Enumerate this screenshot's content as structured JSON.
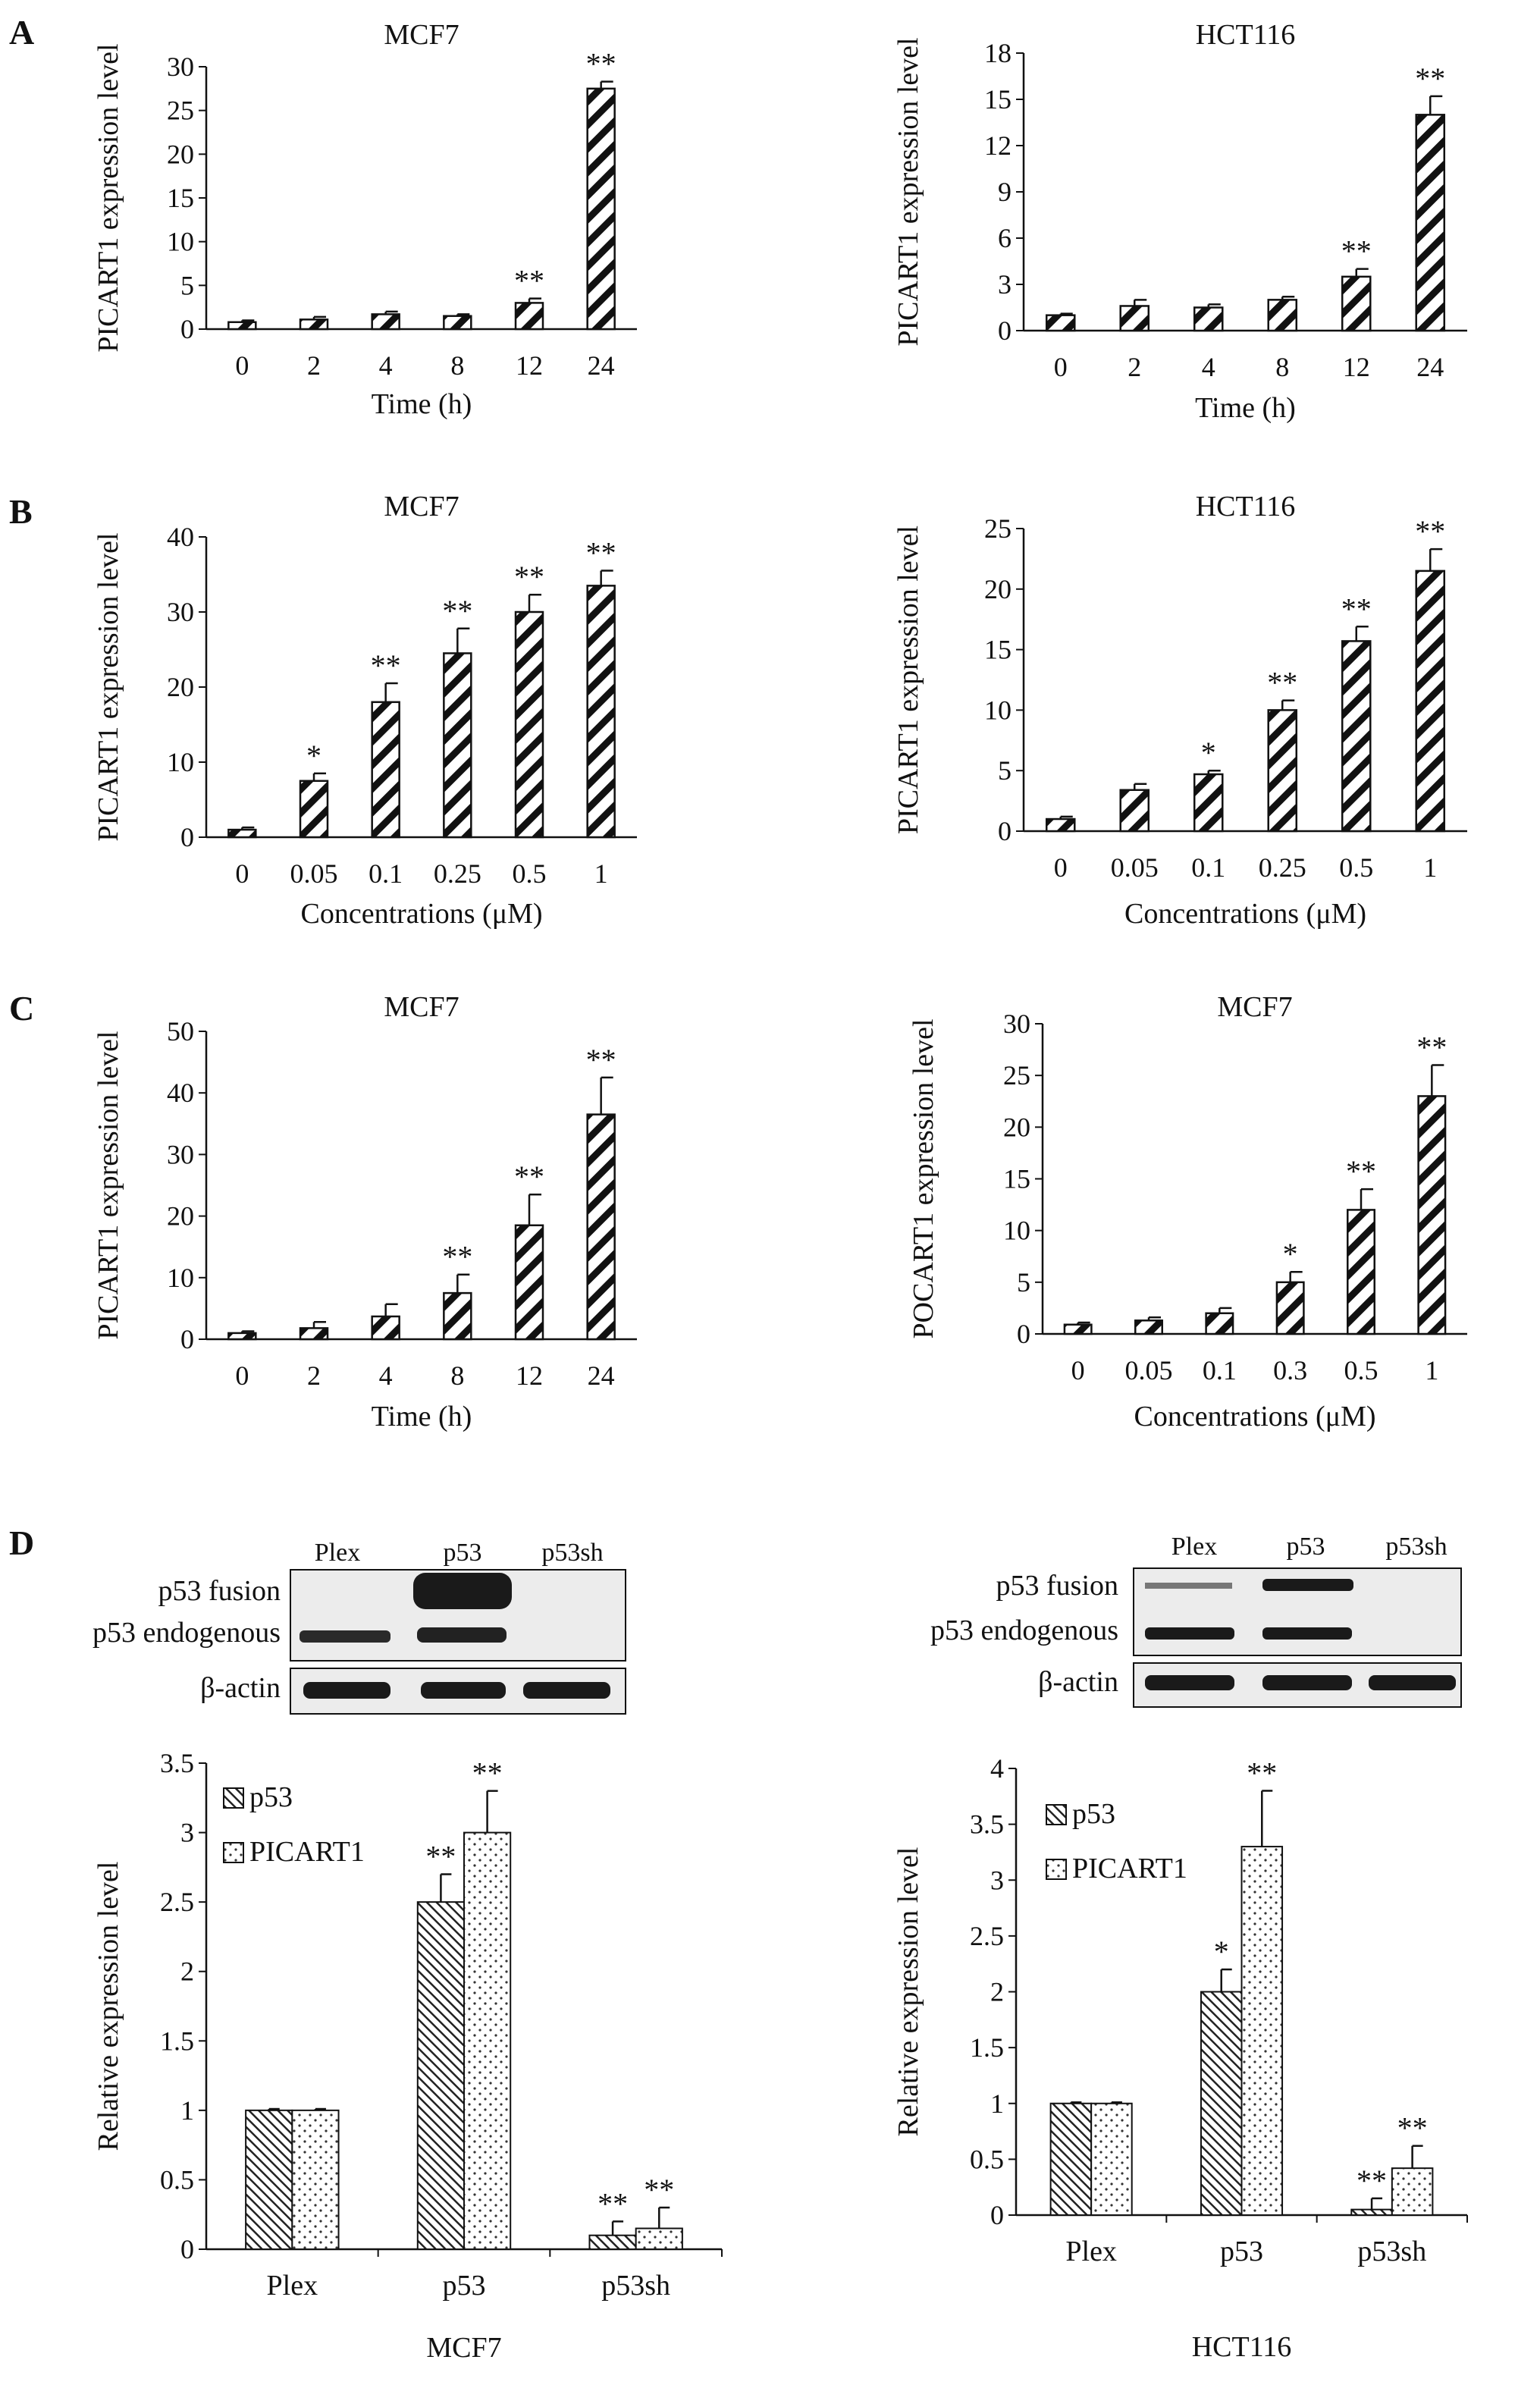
{
  "panel_letters": [
    "A",
    "B",
    "C",
    "D"
  ],
  "colors": {
    "ink": "#111111",
    "bar_fill": "#ffffff",
    "blot_band": "#1a1a1a",
    "blot_bg": "#ececec"
  },
  "blots": [
    {
      "lanes": [
        "Plex",
        "p53",
        "p53sh"
      ],
      "row_labels": [
        "p53 fusion",
        "p53 endogenous",
        "β-actin"
      ]
    },
    {
      "lanes": [
        "Plex",
        "p53",
        "p53sh"
      ],
      "row_labels": [
        "p53 fusion",
        "p53 endogenous",
        "β-actin"
      ]
    }
  ],
  "chart_data": [
    {
      "type": "bar",
      "panel": "A",
      "title": "MCF7",
      "xlabel": "Time (h)",
      "ylabel": "PICART1 expression level",
      "categories": [
        "0",
        "2",
        "4",
        "8",
        "12",
        "24"
      ],
      "values": [
        0.8,
        1.1,
        1.7,
        1.5,
        3.0,
        27.5
      ],
      "errors": [
        0.2,
        0.3,
        0.3,
        0.2,
        0.5,
        0.8
      ],
      "significance": [
        "",
        "",
        "",
        "",
        "**",
        "**"
      ],
      "ylim": [
        0,
        30
      ],
      "yticks": [
        0,
        5,
        10,
        15,
        20,
        25,
        30
      ],
      "pattern": "diagonal-hatch"
    },
    {
      "type": "bar",
      "panel": "A",
      "title": "HCT116",
      "xlabel": "Time (h)",
      "ylabel": "PICART1 expression level",
      "categories": [
        "0",
        "2",
        "4",
        "8",
        "12",
        "24"
      ],
      "values": [
        1.0,
        1.6,
        1.5,
        2.0,
        3.5,
        14.0
      ],
      "errors": [
        0.1,
        0.4,
        0.2,
        0.2,
        0.5,
        1.2
      ],
      "significance": [
        "",
        "",
        "",
        "",
        "**",
        "**"
      ],
      "ylim": [
        0,
        18
      ],
      "yticks": [
        0,
        3,
        6,
        9,
        12,
        15,
        18
      ],
      "pattern": "diagonal-hatch"
    },
    {
      "type": "bar",
      "panel": "B",
      "title": "MCF7",
      "xlabel": "Concentrations (μM)",
      "ylabel": "PICART1 expression level",
      "categories": [
        "0",
        "0.05",
        "0.1",
        "0.25",
        "0.5",
        "1"
      ],
      "values": [
        1.0,
        7.5,
        18.0,
        24.5,
        30.0,
        33.5
      ],
      "errors": [
        0.3,
        1.0,
        2.5,
        3.3,
        2.3,
        2.0
      ],
      "significance": [
        "",
        "*",
        "**",
        "**",
        "**",
        "**"
      ],
      "ylim": [
        0,
        40
      ],
      "yticks": [
        0,
        10,
        20,
        30,
        40
      ],
      "pattern": "diagonal-hatch"
    },
    {
      "type": "bar",
      "panel": "B",
      "title": "HCT116",
      "xlabel": "Concentrations (μM)",
      "ylabel": "PICART1 expression level",
      "categories": [
        "0",
        "0.05",
        "0.1",
        "0.25",
        "0.5",
        "1"
      ],
      "values": [
        1.0,
        3.4,
        4.7,
        10.0,
        15.7,
        21.5
      ],
      "errors": [
        0.2,
        0.5,
        0.3,
        0.8,
        1.2,
        1.8
      ],
      "significance": [
        "",
        "",
        "*",
        "**",
        "**",
        "**"
      ],
      "ylim": [
        0,
        25
      ],
      "yticks": [
        0,
        5,
        10,
        15,
        20,
        25
      ],
      "pattern": "diagonal-hatch"
    },
    {
      "type": "bar",
      "panel": "C",
      "title": "MCF7",
      "xlabel": "Time (h)",
      "ylabel": "PICART1 expression level",
      "categories": [
        "0",
        "2",
        "4",
        "8",
        "12",
        "24"
      ],
      "values": [
        1.0,
        1.8,
        3.7,
        7.5,
        18.5,
        36.5
      ],
      "errors": [
        0.3,
        1.0,
        2.0,
        3.0,
        5.0,
        6.0
      ],
      "significance": [
        "",
        "",
        "",
        "**",
        "**",
        "**"
      ],
      "ylim": [
        0,
        50
      ],
      "yticks": [
        0,
        10,
        20,
        30,
        40,
        50
      ],
      "pattern": "diagonal-hatch"
    },
    {
      "type": "bar",
      "panel": "C",
      "title": "MCF7",
      "xlabel": "Concentrations (μM)",
      "ylabel": "POCART1 expression level",
      "categories": [
        "0",
        "0.05",
        "0.1",
        "0.3",
        "0.5",
        "1"
      ],
      "values": [
        0.9,
        1.3,
        2.0,
        5.0,
        12.0,
        23.0
      ],
      "errors": [
        0.2,
        0.3,
        0.5,
        1.0,
        2.0,
        3.0
      ],
      "significance": [
        "",
        "",
        "",
        "*",
        "**",
        "**"
      ],
      "ylim": [
        0,
        30
      ],
      "yticks": [
        0,
        5,
        10,
        15,
        20,
        25,
        30
      ],
      "pattern": "diagonal-hatch"
    },
    {
      "type": "bar",
      "panel": "D",
      "title": "",
      "xlabel": "MCF7",
      "ylabel": "Relative expression level",
      "categories": [
        "Plex",
        "p53",
        "p53sh"
      ],
      "series": [
        {
          "name": "p53",
          "values": [
            1.0,
            2.5,
            0.1
          ],
          "errors": [
            0.01,
            0.2,
            0.1
          ],
          "significance": [
            "",
            "**",
            "**"
          ],
          "pattern": "diagonal-hatch"
        },
        {
          "name": "PICART1",
          "values": [
            1.0,
            3.0,
            0.15
          ],
          "errors": [
            0.01,
            0.3,
            0.15
          ],
          "significance": [
            "",
            "**",
            "**"
          ],
          "pattern": "dots"
        }
      ],
      "ylim": [
        0,
        3.5
      ],
      "yticks": [
        0,
        0.5,
        1,
        1.5,
        2,
        2.5,
        3,
        3.5
      ],
      "legend": "top-left"
    },
    {
      "type": "bar",
      "panel": "D",
      "title": "",
      "xlabel": "HCT116",
      "ylabel": "Relative expression level",
      "categories": [
        "Plex",
        "p53",
        "p53sh"
      ],
      "series": [
        {
          "name": "p53",
          "values": [
            1.0,
            2.0,
            0.05
          ],
          "errors": [
            0.01,
            0.2,
            0.1
          ],
          "significance": [
            "",
            "*",
            "**"
          ],
          "pattern": "diagonal-hatch"
        },
        {
          "name": "PICART1",
          "values": [
            1.0,
            3.3,
            0.42
          ],
          "errors": [
            0.01,
            0.5,
            0.2
          ],
          "significance": [
            "",
            "**",
            "**"
          ],
          "pattern": "dots"
        }
      ],
      "ylim": [
        0,
        4
      ],
      "yticks": [
        0,
        0.5,
        1,
        1.5,
        2,
        2.5,
        3,
        3.5,
        4
      ],
      "legend": "top-left"
    }
  ]
}
